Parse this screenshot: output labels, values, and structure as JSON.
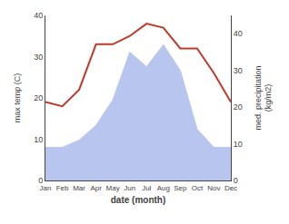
{
  "chart_data": {
    "type": "line",
    "categories": [
      "Jan",
      "Feb",
      "Mar",
      "Apr",
      "May",
      "Jun",
      "Jul",
      "Aug",
      "Sep",
      "Oct",
      "Nov",
      "Dec"
    ],
    "series": [
      {
        "type": "area",
        "axis": "y2",
        "color": "#b8c5ee",
        "values": [
          9,
          9,
          11,
          15,
          22,
          35,
          31,
          37,
          30,
          14,
          9,
          9
        ]
      },
      {
        "type": "line",
        "color": "#c0392b",
        "values": [
          19,
          18,
          22,
          33,
          33,
          35,
          38,
          37,
          32,
          32,
          26,
          19
        ]
      }
    ],
    "xlabel": "date (month)",
    "ylabel": "max temp (C)",
    "y2label": "med. precipitation\n(kg/m2)",
    "ylim": [
      0,
      40
    ],
    "yticks": [
      0,
      10,
      20,
      30,
      40
    ],
    "y2lim": [
      0,
      45
    ],
    "y2ticks": [
      0,
      10,
      20,
      30,
      40
    ],
    "grid": false
  }
}
